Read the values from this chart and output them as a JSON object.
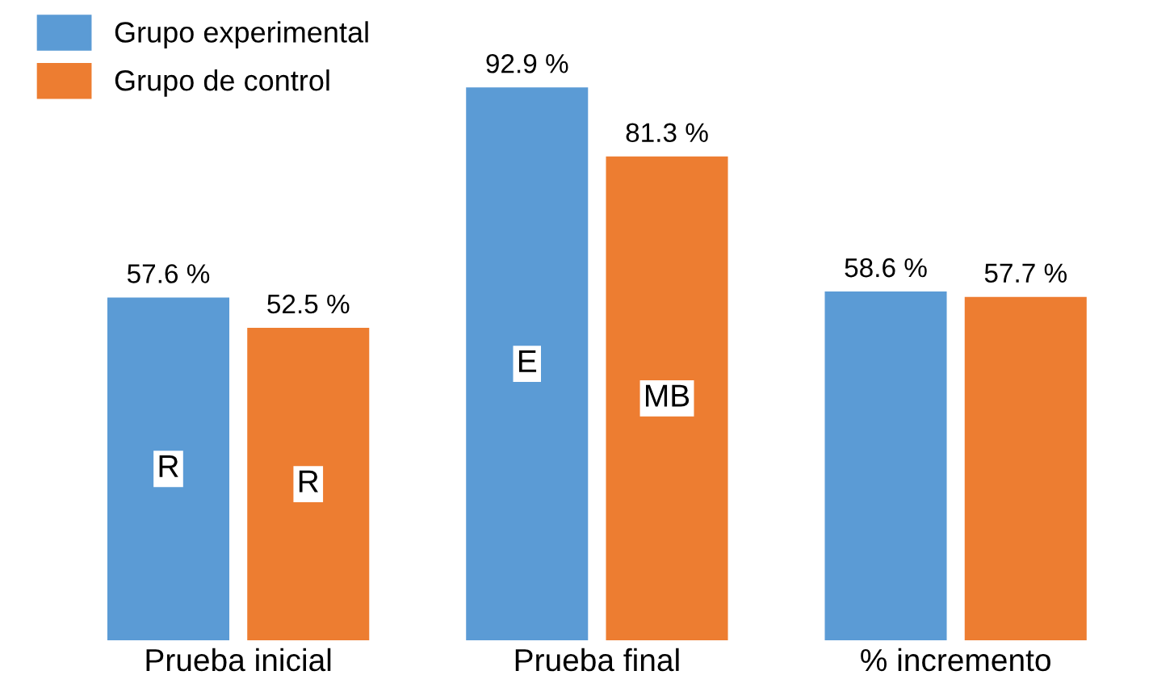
{
  "chart_data": {
    "type": "bar",
    "categories": [
      "Prueba inicial",
      "Prueba final",
      "% incremento"
    ],
    "series": [
      {
        "name": "Grupo experimental",
        "color": "#5b9bd5",
        "values": [
          57.6,
          92.9,
          58.6
        ],
        "value_labels": [
          "57.6 %",
          "92.9 %",
          "58.6 %"
        ]
      },
      {
        "name": "Grupo de control",
        "color": "#ed7d31",
        "values": [
          52.5,
          81.3,
          57.7
        ],
        "value_labels": [
          "52.5 %",
          "81.3 %",
          "57.7 %"
        ]
      }
    ],
    "annotations": [
      "R",
      "R",
      "E",
      "MB"
    ],
    "legend": "top left",
    "grid": false
  }
}
